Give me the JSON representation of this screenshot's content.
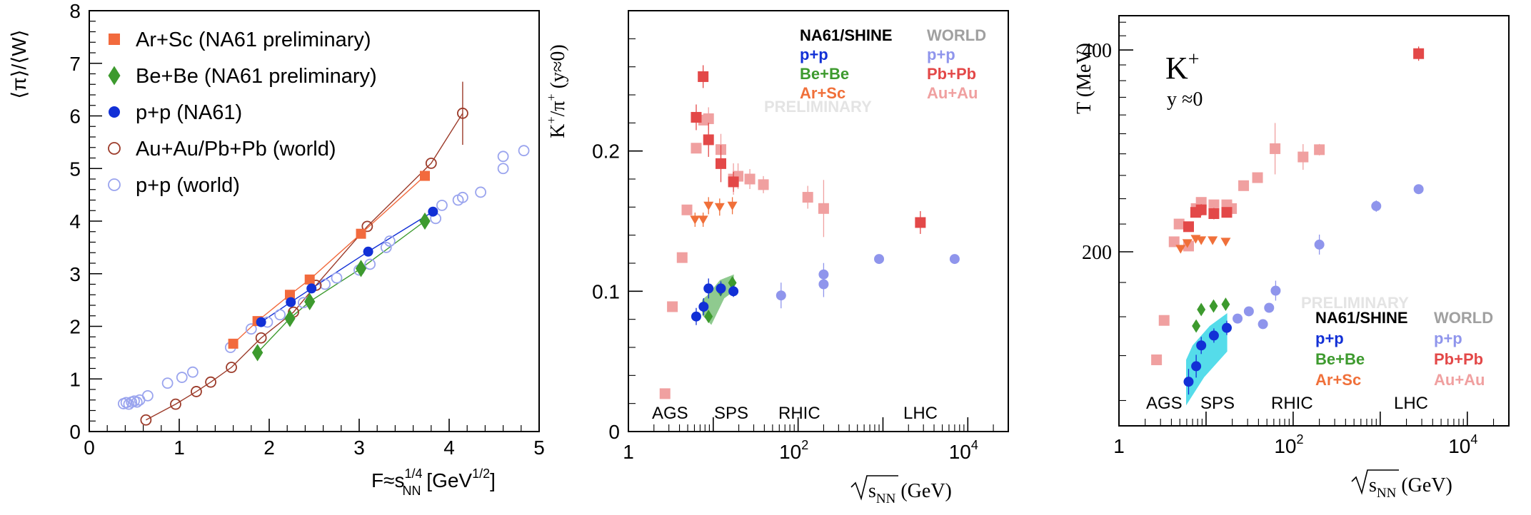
{
  "chart_data": [
    {
      "type": "scatter",
      "title": "",
      "xlabel_main": "F≈s",
      "xlabel_sub": "NN",
      "xlabel_sup": "1/4",
      "xlabel_unit": "[GeV",
      "xlabel_unit_sup": "1/2",
      "xlabel_close": "]",
      "ylabel": "⟨π⟩/⟨W⟩",
      "xlim": [
        0,
        5
      ],
      "ylim": [
        0,
        8
      ],
      "x_ticks": [
        "0",
        "1",
        "2",
        "3",
        "4",
        "5"
      ],
      "y_ticks": [
        "0",
        "1",
        "2",
        "3",
        "4",
        "5",
        "6",
        "7",
        "8"
      ],
      "legend": [
        "Ar+Sc (NA61 preliminary)",
        "Be+Be (NA61 preliminary)",
        "p+p (NA61)",
        "Au+Au/Pb+Pb (world)",
        "p+p (world)"
      ],
      "colors": {
        "arsc": "#f26a3d",
        "bebe": "#3d9a2e",
        "pp": "#1230d6",
        "auau": "#9c3b2a",
        "ppw": "#9aa4ee"
      },
      "series": [
        {
          "name": "Ar+Sc (NA61 preliminary)",
          "marker": "square",
          "x": [
            1.6,
            1.87,
            2.23,
            2.45,
            3.02,
            3.73
          ],
          "y": [
            1.67,
            2.1,
            2.6,
            2.89,
            3.76,
            4.86
          ]
        },
        {
          "name": "Be+Be (NA61 preliminary)",
          "marker": "diamond",
          "x": [
            1.87,
            2.23,
            2.45,
            3.02,
            3.73
          ],
          "y": [
            1.5,
            2.15,
            2.47,
            3.1,
            4.0
          ]
        },
        {
          "name": "p+p (NA61)",
          "marker": "circle",
          "x": [
            1.91,
            2.24,
            2.47,
            3.1,
            3.82
          ],
          "y": [
            2.08,
            2.46,
            2.72,
            3.42,
            4.18
          ]
        },
        {
          "name": "Au+Au/Pb+Pb (world)",
          "marker": "open-circle",
          "x": [
            0.63,
            0.96,
            1.19,
            1.35,
            1.58,
            1.91,
            2.27,
            2.52,
            3.09,
            3.8,
            4.15
          ],
          "y": [
            0.22,
            0.52,
            0.76,
            0.94,
            1.22,
            1.78,
            2.27,
            2.78,
            3.9,
            5.1,
            6.05
          ]
        },
        {
          "name": "p+p (world)",
          "marker": "open-circle",
          "x": [
            0.38,
            0.41,
            0.44,
            0.47,
            0.5,
            0.53,
            0.56,
            0.65,
            0.87,
            1.03,
            1.15,
            1.57,
            1.8,
            1.98,
            2.12,
            2.38,
            2.62,
            2.75,
            3.0,
            3.12,
            3.3,
            3.34,
            3.85,
            3.92,
            4.1,
            4.15,
            4.35,
            4.6,
            4.6,
            4.83
          ],
          "y": [
            0.53,
            0.55,
            0.52,
            0.56,
            0.58,
            0.56,
            0.6,
            0.68,
            0.92,
            1.03,
            1.13,
            1.6,
            1.95,
            2.08,
            2.22,
            2.45,
            2.8,
            2.92,
            3.07,
            3.18,
            3.5,
            3.62,
            4.05,
            4.3,
            4.4,
            4.45,
            4.55,
            5.0,
            5.23,
            5.34
          ]
        }
      ]
    },
    {
      "type": "scatter",
      "title": "",
      "xscale": "log",
      "xlabel_sqrt": "s",
      "xlabel_sub": "NN",
      "xlabel_unit": "(GeV)",
      "ylabel_main": "K",
      "ylabel_sup1": "+",
      "ylabel_mid": "/π",
      "ylabel_sup2": "+",
      "ylabel_end": "(y≈0)",
      "xlim": [
        1,
        30000
      ],
      "ylim": [
        0,
        0.3
      ],
      "x_ticks": [
        {
          "value": 1,
          "label": "1"
        },
        {
          "value": 100,
          "label": "10",
          "sup": "2"
        },
        {
          "value": 10000,
          "label": "10",
          "sup": "4"
        }
      ],
      "y_ticks": [
        "0",
        "0.1",
        "0.2"
      ],
      "energy_labels": [
        "AGS",
        "SPS",
        "RHIC",
        "LHC"
      ],
      "legend": {
        "col1_title": "NA61/SHINE",
        "col1": [
          "p+p",
          "Be+Be",
          "Ar+Sc"
        ],
        "col2_title": "WORLD",
        "col2": [
          "p+p",
          "Pb+Pb",
          "Au+Au"
        ]
      },
      "watermark": "PRELIMINARY",
      "series": [
        {
          "name": "Au+Au (world)",
          "color": "#f0a0a0",
          "marker": "square",
          "x": [
            2.7,
            3.3,
            4.3,
            4.9,
            6.3,
            7.7,
            8.8,
            12.3,
            17.3,
            19.6,
            27,
            39,
            130,
            200
          ],
          "y": [
            0.027,
            0.089,
            0.124,
            0.158,
            0.202,
            0.222,
            0.223,
            0.201,
            0.18,
            0.182,
            0.18,
            0.176,
            0.167,
            0.159
          ]
        },
        {
          "name": "Pb+Pb (world)",
          "color": "#e34848",
          "marker": "square",
          "x": [
            6.3,
            7.6,
            8.8,
            12.3,
            17.3,
            2760
          ],
          "y": [
            0.224,
            0.253,
            0.208,
            0.191,
            0.178,
            0.149
          ]
        },
        {
          "name": "Ar+Sc (NA61)",
          "color": "#f0703a",
          "marker": "triangle-down",
          "x": [
            6.1,
            7.6,
            8.8,
            11.9,
            16.8
          ],
          "y": [
            0.151,
            0.151,
            0.161,
            0.16,
            0.161
          ]
        },
        {
          "name": "Be+Be (NA61)",
          "color": "#3d9a2e",
          "marker": "diamond",
          "x": [
            7.7,
            8.8,
            12.2,
            16.8
          ],
          "y": [
            0.089,
            0.082,
            0.101,
            0.106
          ]
        },
        {
          "name": "p+p (NA61)",
          "color": "#1230d6",
          "marker": "circle",
          "x": [
            6.3,
            7.7,
            8.8,
            12.3,
            17.3
          ],
          "y": [
            0.082,
            0.089,
            0.102,
            0.102,
            0.1
          ]
        },
        {
          "name": "p+p (world)",
          "color": "#8f95ec",
          "marker": "circle",
          "x": [
            63,
            200,
            200,
            900,
            7000
          ],
          "y": [
            0.097,
            0.105,
            0.112,
            0.123,
            0.123
          ]
        }
      ]
    },
    {
      "type": "scatter",
      "title": "",
      "xscale": "log",
      "yscale": "log",
      "xlabel_sqrt": "s",
      "xlabel_sub": "NN",
      "xlabel_unit": "(GeV)",
      "ylabel": "T (MeV)",
      "xlim": [
        1,
        30000
      ],
      "ylim": [
        110,
        450
      ],
      "x_ticks": [
        {
          "value": 1,
          "label": "1"
        },
        {
          "value": 100,
          "label": "10",
          "sup": "2"
        },
        {
          "value": 10000,
          "label": "10",
          "sup": "4"
        }
      ],
      "y_ticks": [
        {
          "value": 200,
          "label": "200"
        },
        {
          "value": 400,
          "label": "400"
        }
      ],
      "annotation_main": "K",
      "annotation_sup": "+",
      "annotation_sub": "y ≈0",
      "energy_labels": [
        "AGS",
        "SPS",
        "RHIC",
        "LHC"
      ],
      "legend": {
        "col1_title": "NA61/SHINE",
        "col1": [
          "p+p",
          "Be+Be",
          "Ar+Sc"
        ],
        "col2_title": "WORLD",
        "col2": [
          "p+p",
          "Pb+Pb",
          "Au+Au"
        ]
      },
      "watermark": "PRELIMINARY",
      "series": [
        {
          "name": "Au+Au (world)",
          "color": "#f0a0a0",
          "marker": "square",
          "x": [
            2.7,
            3.3,
            4.3,
            4.9,
            6.3,
            7.7,
            8.8,
            12.3,
            17.3,
            19.6,
            27,
            39,
            62,
            130,
            200
          ],
          "y": [
            138,
            158,
            207,
            220,
            204,
            232,
            237,
            235,
            235,
            232,
            251,
            258,
            285,
            277,
            284
          ]
        },
        {
          "name": "Pb+Pb (world)",
          "color": "#e34848",
          "marker": "square",
          "x": [
            6.3,
            7.6,
            8.8,
            12.3,
            17.3,
            2760
          ],
          "y": [
            218,
            229,
            231,
            228,
            229,
            395
          ]
        },
        {
          "name": "Ar+Sc (NA61)",
          "color": "#f0703a",
          "marker": "triangle-down",
          "x": [
            5.1,
            6.1,
            7.6,
            8.8,
            11.9,
            16.8
          ],
          "y": [
            202,
            206,
            209,
            208,
            208,
            207
          ]
        },
        {
          "name": "Be+Be (NA61)",
          "color": "#3d9a2e",
          "marker": "diamond",
          "x": [
            7.7,
            8.8,
            12.2,
            16.8
          ],
          "y": [
            155,
            164,
            166,
            167
          ]
        },
        {
          "name": "p+p (NA61)",
          "color": "#1230d6",
          "marker": "circle",
          "x": [
            6.3,
            7.7,
            8.8,
            12.3,
            17.3
          ],
          "y": [
            128,
            135,
            145,
            150,
            154
          ]
        },
        {
          "name": "p+p (world)",
          "color": "#8f95ec",
          "marker": "circle",
          "x": [
            23,
            31,
            45,
            53,
            63,
            200,
            900,
            2760
          ],
          "y": [
            159,
            163,
            156,
            165,
            175,
            205,
            234,
            248
          ]
        }
      ]
    }
  ]
}
